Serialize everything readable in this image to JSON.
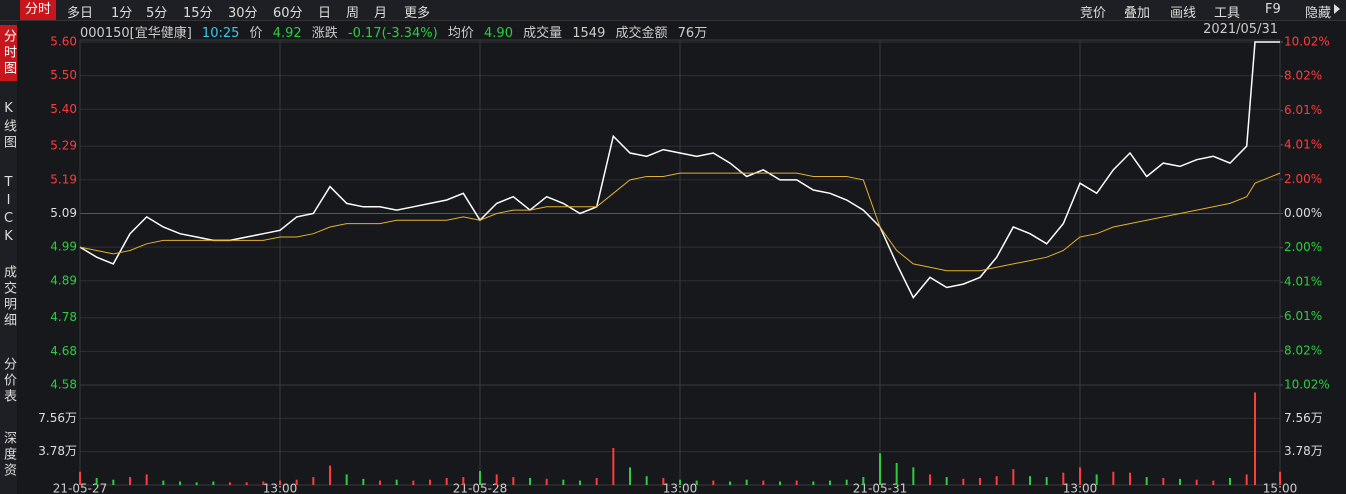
{
  "toolbar": {
    "left": [
      "分时",
      "多日",
      "1分",
      "5分",
      "15分",
      "30分",
      "60分",
      "日",
      "周",
      "月",
      "更多"
    ],
    "right": [
      "竞价",
      "叠加",
      "画线",
      "工具",
      "F9",
      "隐藏"
    ]
  },
  "sidebar": [
    "分时图",
    "K线图",
    "TICK",
    "成交明细",
    "分价表",
    "深度资"
  ],
  "info": {
    "code": "000150[宜华健康]",
    "time": "10:25",
    "price_label": "价",
    "price": "4.92",
    "change_label": "涨跌",
    "change": "-0.17(-3.34%)",
    "avg_label": "均价",
    "avg": "4.90",
    "volume_label": "成交量",
    "volume": "1549",
    "amount_label": "成交金额",
    "amount": "76万",
    "date": "2021/05/31"
  },
  "chart_data": [
    {
      "type": "line",
      "x": [
        0,
        10,
        20,
        30,
        40,
        50,
        60,
        70,
        80,
        90,
        100,
        110,
        120,
        130,
        140,
        150,
        160,
        170,
        180,
        190,
        200,
        210,
        220,
        230,
        240,
        250,
        260,
        270,
        280,
        290,
        300,
        310,
        320,
        330,
        340,
        350,
        360,
        370,
        380,
        390,
        400,
        410,
        420,
        430,
        440,
        450,
        460,
        470,
        480,
        490,
        500,
        510,
        520,
        530,
        540,
        550,
        560,
        570,
        580,
        590,
        600,
        610,
        620,
        630,
        640,
        650,
        660,
        670,
        680,
        690,
        700,
        705,
        720
      ],
      "series": [
        {
          "color": "#ffffff",
          "values": [
            4.99,
            4.96,
            4.94,
            5.03,
            5.08,
            5.05,
            5.03,
            5.02,
            5.01,
            5.01,
            5.02,
            5.03,
            5.04,
            5.08,
            5.09,
            5.17,
            5.12,
            5.11,
            5.11,
            5.1,
            5.11,
            5.12,
            5.13,
            5.15,
            5.07,
            5.12,
            5.14,
            5.1,
            5.14,
            5.12,
            5.09,
            5.11,
            5.32,
            5.27,
            5.26,
            5.28,
            5.27,
            5.26,
            5.27,
            5.24,
            5.2,
            5.22,
            5.19,
            5.19,
            5.16,
            5.15,
            5.13,
            5.1,
            5.05,
            4.94,
            4.84,
            4.9,
            4.87,
            4.88,
            4.9,
            4.96,
            5.05,
            5.03,
            5.0,
            5.06,
            5.18,
            5.15,
            5.22,
            5.27,
            5.2,
            5.24,
            5.23,
            5.25,
            5.26,
            5.24,
            5.29,
            5.6,
            5.6
          ]
        },
        {
          "color": "#e5b02f",
          "values": [
            4.99,
            4.98,
            4.97,
            4.98,
            5.0,
            5.01,
            5.01,
            5.01,
            5.01,
            5.01,
            5.01,
            5.01,
            5.02,
            5.02,
            5.03,
            5.05,
            5.06,
            5.06,
            5.06,
            5.07,
            5.07,
            5.07,
            5.07,
            5.08,
            5.07,
            5.09,
            5.1,
            5.1,
            5.11,
            5.11,
            5.11,
            5.11,
            5.15,
            5.19,
            5.2,
            5.2,
            5.21,
            5.21,
            5.21,
            5.21,
            5.21,
            5.21,
            5.21,
            5.21,
            5.2,
            5.2,
            5.2,
            5.19,
            5.05,
            4.98,
            4.94,
            4.93,
            4.92,
            4.92,
            4.92,
            4.93,
            4.94,
            4.95,
            4.96,
            4.98,
            5.02,
            5.03,
            5.05,
            5.06,
            5.07,
            5.08,
            5.09,
            5.1,
            5.11,
            5.12,
            5.14,
            5.18,
            5.21
          ]
        }
      ],
      "xlim": [
        0,
        720
      ],
      "ylim": [
        4.58,
        5.6
      ],
      "yticks": [
        {
          "value": 5.6,
          "label": "5.60"
        },
        {
          "value": 5.5,
          "label": "5.50"
        },
        {
          "value": 5.4,
          "label": "5.40"
        },
        5.29,
        5.19,
        5.09,
        4.99,
        4.89,
        4.78,
        4.68,
        4.58
      ],
      "y2lim": [
        -10.02,
        10.02
      ],
      "y2ticks": [
        {
          "value": 10.02,
          "label": "10.02%"
        },
        {
          "value": 8.02,
          "label": "8.02%"
        },
        {
          "value": 6.01,
          "label": "6.01%"
        },
        {
          "value": 4.01,
          "label": "4.01%"
        },
        {
          "value": 2.0,
          "label": "2.00%"
        },
        {
          "value": 0,
          "label": "0.00%"
        },
        {
          "value": -2.0,
          "label": "2.00%"
        },
        {
          "value": -4.01,
          "label": "4.01%"
        },
        {
          "value": -6.01,
          "label": "6.01%"
        },
        {
          "value": -8.02,
          "label": "8.02%"
        },
        {
          "value": -10.02,
          "label": "10.02%"
        }
      ],
      "grid": true
    },
    {
      "type": "bar",
      "x": [
        0,
        10,
        20,
        30,
        40,
        50,
        60,
        70,
        80,
        90,
        100,
        110,
        120,
        130,
        140,
        150,
        160,
        170,
        180,
        190,
        200,
        210,
        220,
        230,
        240,
        250,
        260,
        270,
        280,
        290,
        300,
        310,
        320,
        330,
        340,
        350,
        360,
        370,
        380,
        390,
        400,
        410,
        420,
        430,
        440,
        450,
        460,
        470,
        480,
        490,
        500,
        510,
        520,
        530,
        540,
        550,
        560,
        570,
        580,
        590,
        600,
        610,
        620,
        630,
        640,
        650,
        660,
        670,
        680,
        690,
        700,
        705,
        720
      ],
      "values": [
        15000,
        8000,
        6000,
        9000,
        12000,
        5000,
        4000,
        3000,
        4000,
        3000,
        3000,
        4000,
        5000,
        6000,
        9000,
        22000,
        12000,
        7000,
        5000,
        6000,
        5000,
        6000,
        8000,
        9000,
        16000,
        12000,
        9000,
        8000,
        7000,
        6000,
        5000,
        8000,
        42000,
        20000,
        10000,
        8000,
        6000,
        5000,
        5000,
        4000,
        6000,
        5000,
        4000,
        5000,
        4000,
        5000,
        6000,
        9000,
        36000,
        25000,
        20000,
        12000,
        9000,
        7000,
        8000,
        10000,
        18000,
        10000,
        9000,
        14000,
        20000,
        12000,
        15000,
        14000,
        9000,
        8000,
        7000,
        6000,
        5000,
        8000,
        12000,
        105000,
        15000
      ],
      "xlim": [
        0,
        720
      ],
      "xticks": [
        {
          "value": 0,
          "label": "21-05-27"
        },
        {
          "value": 120,
          "label": "13:00"
        },
        {
          "value": 240,
          "label": "21-05-28"
        },
        {
          "value": 360,
          "label": "13:00"
        },
        {
          "value": 480,
          "label": "21-05-31"
        },
        {
          "value": 600,
          "label": "13:00"
        },
        {
          "value": 720,
          "label": "15:00"
        }
      ],
      "ylim": [
        0,
        113400
      ],
      "yticks": [
        {
          "value": 37800,
          "label": "3.78万"
        },
        {
          "value": 75600,
          "label": "7.56万"
        }
      ],
      "up_color": "#ff3b3b",
      "down_color": "#2ecc40"
    }
  ]
}
